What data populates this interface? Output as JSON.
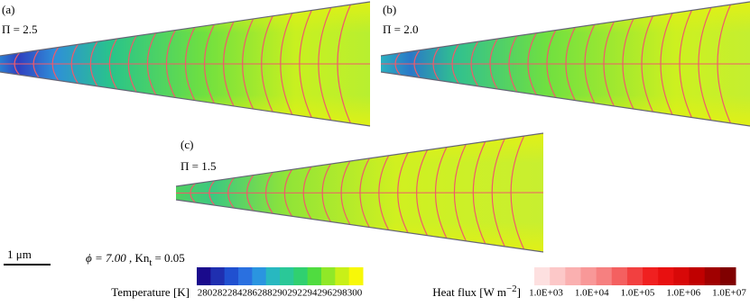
{
  "panels": [
    {
      "label": "(a)",
      "parameter": "Π = 2.5"
    },
    {
      "label": "(b)",
      "parameter": "Π = 2.0"
    },
    {
      "label": "(c)",
      "parameter": "Π = 1.5"
    }
  ],
  "scale_bar": "1 μm",
  "conditions": {
    "phi": "ϕ = 7.00 ,",
    "kn": "Kn",
    "kn_sub": "t",
    "kn_value": "= 0.05"
  },
  "temperature_legend": {
    "title": "Temperature [K]",
    "ticks": [
      280,
      282,
      284,
      286,
      288,
      290,
      292,
      294,
      296,
      298,
      300
    ]
  },
  "heat_flux_legend": {
    "title": "Heat flux [W m",
    "title_sup": "−2",
    "title_end": "]",
    "ticks": [
      "1.0E+03",
      "1.0E+04",
      "1.0E+05",
      "1.0E+06",
      "1.0E+07"
    ]
  }
}
